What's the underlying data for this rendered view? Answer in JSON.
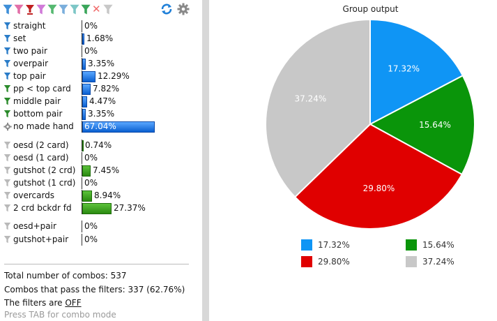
{
  "toolbar": {
    "filter_colors": [
      "#3f8fd8",
      "#e26fa8",
      "#c02020",
      "#d07ad8",
      "#55b870",
      "#7aaedc",
      "#7cc6c6",
      "#3aa55a"
    ],
    "clear_icon": "x",
    "refresh_icon": "refresh-icon",
    "settings_icon": "gear-icon"
  },
  "made_hands": [
    {
      "label": "straight",
      "pct": "0%",
      "value": 0.0,
      "color": "blue",
      "icon_color": "#2a7cc8"
    },
    {
      "label": "set",
      "pct": "1.68%",
      "value": 1.68,
      "color": "blue",
      "icon_color": "#2a7cc8"
    },
    {
      "label": "two pair",
      "pct": "0%",
      "value": 0.0,
      "color": "blue",
      "icon_color": "#2a7cc8"
    },
    {
      "label": "overpair",
      "pct": "3.35%",
      "value": 3.35,
      "color": "blue",
      "icon_color": "#2a7cc8"
    },
    {
      "label": "top pair",
      "pct": "12.29%",
      "value": 12.29,
      "color": "blue",
      "icon_color": "#2a7cc8"
    },
    {
      "label": "pp < top card",
      "pct": "7.82%",
      "value": 7.82,
      "color": "blue",
      "icon_color": "#2a8a2a"
    },
    {
      "label": "middle pair",
      "pct": "4.47%",
      "value": 4.47,
      "color": "blue",
      "icon_color": "#2a8a2a"
    },
    {
      "label": "bottom pair",
      "pct": "3.35%",
      "value": 3.35,
      "color": "blue",
      "icon_color": "#2a8a2a"
    },
    {
      "label": "no made hand",
      "pct": "67.04%",
      "value": 67.04,
      "color": "blue",
      "icon_color": "gear"
    }
  ],
  "draws": [
    {
      "label": "oesd (2 card)",
      "pct": "0.74%",
      "value": 0.74,
      "color": "green"
    },
    {
      "label": "oesd (1 card)",
      "pct": "0%",
      "value": 0.0,
      "color": "green"
    },
    {
      "label": "gutshot (2 crd)",
      "pct": "7.45%",
      "value": 7.45,
      "color": "green"
    },
    {
      "label": "gutshot (1 crd)",
      "pct": "0%",
      "value": 0.0,
      "color": "green"
    },
    {
      "label": "overcards",
      "pct": "8.94%",
      "value": 8.94,
      "color": "green"
    },
    {
      "label": "2 crd bckdr fd",
      "pct": "27.37%",
      "value": 27.37,
      "color": "green"
    }
  ],
  "combos": [
    {
      "label": "oesd+pair",
      "pct": "0%",
      "value": 0.0,
      "color": "green"
    },
    {
      "label": "gutshot+pair",
      "pct": "0%",
      "value": 0.0,
      "color": "green"
    }
  ],
  "stats": {
    "total": "Total number of combos: 537",
    "pass": "Combos that pass the filters: 337 (62.76%)",
    "filters_prefix": "The filters are ",
    "filters_state": "OFF",
    "hint": "Press TAB for combo mode"
  },
  "chart_data": {
    "type": "pie",
    "title": "Group output",
    "slices": [
      {
        "label": "17.32%",
        "value": 17.32,
        "color": "#0f95f5"
      },
      {
        "label": "15.64%",
        "value": 15.64,
        "color": "#0a950a"
      },
      {
        "label": "29.80%",
        "value": 29.8,
        "color": "#e00000"
      },
      {
        "label": "37.24%",
        "value": 37.24,
        "color": "#c8c8c8"
      }
    ],
    "legend": [
      {
        "label": "17.32%",
        "color": "#0f95f5"
      },
      {
        "label": "15.64%",
        "color": "#0a950a"
      },
      {
        "label": "29.80%",
        "color": "#e00000"
      },
      {
        "label": "37.24%",
        "color": "#c8c8c8"
      }
    ],
    "legend_position": "bottom"
  }
}
